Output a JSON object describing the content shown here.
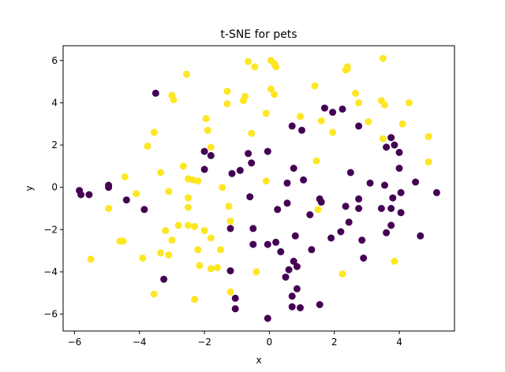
{
  "chart_data": {
    "type": "scatter",
    "title": "t-SNE for pets",
    "xlabel": "x",
    "ylabel": "y",
    "xlim": [
      -6.35,
      5.7
    ],
    "ylim": [
      -6.8,
      6.7
    ],
    "xticks": [
      -6,
      -4,
      -2,
      0,
      2,
      4
    ],
    "yticks": [
      -6,
      -4,
      -2,
      0,
      2,
      4,
      6
    ],
    "grid": false,
    "legend": "none",
    "series": [
      {
        "color": "#440154",
        "points": [
          [
            -3.5,
            4.45
          ],
          [
            -5.85,
            -0.15
          ],
          [
            -5.8,
            -0.35
          ],
          [
            -5.55,
            -0.35
          ],
          [
            -4.95,
            0.0
          ],
          [
            -4.95,
            0.1
          ],
          [
            -4.4,
            -0.6
          ],
          [
            -3.85,
            -1.05
          ],
          [
            -3.25,
            -4.35
          ],
          [
            -2.0,
            0.85
          ],
          [
            -2.0,
            1.7
          ],
          [
            -1.8,
            1.5
          ],
          [
            -1.2,
            -1.95
          ],
          [
            -1.2,
            -3.95
          ],
          [
            -1.15,
            0.65
          ],
          [
            -1.05,
            -5.25
          ],
          [
            -1.05,
            -5.75
          ],
          [
            -0.9,
            0.8
          ],
          [
            -0.65,
            1.6
          ],
          [
            -0.6,
            -0.45
          ],
          [
            -0.55,
            1.15
          ],
          [
            -0.5,
            -1.95
          ],
          [
            -0.5,
            -2.7
          ],
          [
            -0.05,
            1.7
          ],
          [
            -0.05,
            -2.7
          ],
          [
            -0.05,
            -6.2
          ],
          [
            0.2,
            -2.6
          ],
          [
            0.25,
            -1.05
          ],
          [
            0.35,
            -3.05
          ],
          [
            0.5,
            -4.25
          ],
          [
            0.55,
            -0.75
          ],
          [
            0.55,
            0.2
          ],
          [
            0.6,
            -3.9
          ],
          [
            0.7,
            -5.15
          ],
          [
            0.7,
            -5.65
          ],
          [
            0.7,
            2.9
          ],
          [
            0.75,
            -3.5
          ],
          [
            0.75,
            0.9
          ],
          [
            0.8,
            -2.3
          ],
          [
            0.85,
            -3.75
          ],
          [
            0.85,
            -4.8
          ],
          [
            0.95,
            -5.7
          ],
          [
            1.0,
            2.7
          ],
          [
            1.05,
            0.35
          ],
          [
            1.25,
            -1.3
          ],
          [
            1.3,
            -2.95
          ],
          [
            1.55,
            -0.55
          ],
          [
            1.55,
            -5.55
          ],
          [
            1.6,
            -0.7
          ],
          [
            1.7,
            3.75
          ],
          [
            1.9,
            -2.4
          ],
          [
            1.95,
            3.55
          ],
          [
            2.2,
            -2.1
          ],
          [
            2.25,
            3.7
          ],
          [
            2.35,
            -0.9
          ],
          [
            2.45,
            -1.65
          ],
          [
            2.5,
            0.7
          ],
          [
            2.75,
            -0.55
          ],
          [
            2.75,
            -1.0
          ],
          [
            2.75,
            2.9
          ],
          [
            2.85,
            -2.5
          ],
          [
            2.9,
            -3.35
          ],
          [
            3.1,
            0.2
          ],
          [
            3.45,
            -1.0
          ],
          [
            3.55,
            0.1
          ],
          [
            3.6,
            -2.15
          ],
          [
            3.6,
            1.9
          ],
          [
            3.75,
            2.35
          ],
          [
            3.75,
            -1.0
          ],
          [
            3.75,
            -1.8
          ],
          [
            3.8,
            -0.5
          ],
          [
            3.85,
            2.0
          ],
          [
            4.0,
            1.65
          ],
          [
            4.0,
            0.9
          ],
          [
            4.05,
            -1.2
          ],
          [
            4.05,
            -0.25
          ],
          [
            4.5,
            0.25
          ],
          [
            4.65,
            -2.3
          ],
          [
            5.15,
            -0.25
          ]
        ]
      },
      {
        "color": "#fde725",
        "points": [
          [
            -5.5,
            -3.4
          ],
          [
            -4.95,
            -1.0
          ],
          [
            -4.6,
            -2.55
          ],
          [
            -4.5,
            -2.55
          ],
          [
            -4.45,
            0.5
          ],
          [
            -4.1,
            -0.3
          ],
          [
            -3.9,
            -3.35
          ],
          [
            -3.75,
            1.95
          ],
          [
            -3.55,
            2.6
          ],
          [
            -3.55,
            -5.05
          ],
          [
            -3.35,
            0.7
          ],
          [
            -3.35,
            -3.1
          ],
          [
            -3.2,
            -2.05
          ],
          [
            -3.1,
            -3.2
          ],
          [
            -3.1,
            -0.2
          ],
          [
            -3.0,
            4.35
          ],
          [
            -2.95,
            4.15
          ],
          [
            -3.0,
            -2.5
          ],
          [
            -2.8,
            -1.8
          ],
          [
            -2.65,
            1.0
          ],
          [
            -2.55,
            5.35
          ],
          [
            -2.5,
            0.4
          ],
          [
            -2.5,
            -0.5
          ],
          [
            -2.5,
            -0.95
          ],
          [
            -2.5,
            -1.8
          ],
          [
            -2.35,
            0.35
          ],
          [
            -2.3,
            -5.3
          ],
          [
            -2.3,
            -1.85
          ],
          [
            -2.2,
            0.3
          ],
          [
            -2.2,
            -2.95
          ],
          [
            -2.15,
            -3.7
          ],
          [
            -2.0,
            -2.05
          ],
          [
            -1.95,
            3.25
          ],
          [
            -1.9,
            2.7
          ],
          [
            -1.8,
            1.9
          ],
          [
            -1.8,
            -2.4
          ],
          [
            -1.8,
            -3.85
          ],
          [
            -1.6,
            -3.8
          ],
          [
            -1.5,
            -2.95
          ],
          [
            -1.45,
            0.0
          ],
          [
            -1.3,
            4.55
          ],
          [
            -1.3,
            3.95
          ],
          [
            -1.25,
            -0.9
          ],
          [
            -1.2,
            -1.6
          ],
          [
            -1.2,
            -4.95
          ],
          [
            -0.8,
            4.1
          ],
          [
            -0.75,
            4.3
          ],
          [
            -0.65,
            5.95
          ],
          [
            -0.55,
            2.55
          ],
          [
            -0.45,
            5.7
          ],
          [
            -0.4,
            -4.0
          ],
          [
            -0.1,
            3.5
          ],
          [
            -0.1,
            0.3
          ],
          [
            0.05,
            6.0
          ],
          [
            0.05,
            4.65
          ],
          [
            0.15,
            4.4
          ],
          [
            0.15,
            5.85
          ],
          [
            0.2,
            5.7
          ],
          [
            0.95,
            3.35
          ],
          [
            1.4,
            4.8
          ],
          [
            1.45,
            1.25
          ],
          [
            1.5,
            -1.05
          ],
          [
            1.6,
            3.15
          ],
          [
            1.95,
            2.6
          ],
          [
            2.25,
            -4.1
          ],
          [
            2.35,
            5.55
          ],
          [
            2.4,
            5.6
          ],
          [
            2.4,
            5.7
          ],
          [
            2.65,
            4.45
          ],
          [
            2.75,
            4.0
          ],
          [
            3.05,
            3.1
          ],
          [
            3.45,
            4.1
          ],
          [
            3.5,
            6.1
          ],
          [
            3.5,
            2.3
          ],
          [
            3.55,
            3.9
          ],
          [
            3.85,
            -3.5
          ],
          [
            4.1,
            3.0
          ],
          [
            4.3,
            4.0
          ],
          [
            4.9,
            2.4
          ],
          [
            4.9,
            1.2
          ]
        ]
      }
    ]
  }
}
